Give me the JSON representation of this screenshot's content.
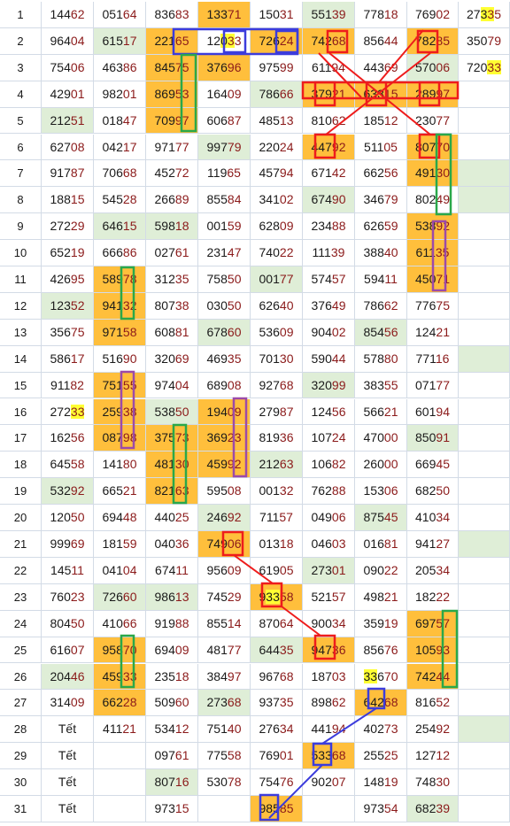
{
  "rows": [
    {
      "num": "1",
      "cells": [
        {
          "t": "14462"
        },
        {
          "t": "05164"
        },
        {
          "t": "83683"
        },
        {
          "t": "13371",
          "bg": "or"
        },
        {
          "t": "15031"
        },
        {
          "t": "55139",
          "bg": "gr"
        },
        {
          "t": "77818"
        },
        {
          "t": "76902"
        },
        {
          "t": "27335",
          "hl": [
            2,
            4
          ]
        }
      ]
    },
    {
      "num": "2",
      "cells": [
        {
          "t": "96404"
        },
        {
          "t": "61517",
          "bg": "gr"
        },
        {
          "t": "22165",
          "bg": "or"
        },
        {
          "t": "12033",
          "hl": [
            2,
            4
          ]
        },
        {
          "t": "72624",
          "bg": "or"
        },
        {
          "t": "74268",
          "bg": "or"
        },
        {
          "t": "85644"
        },
        {
          "t": "78285",
          "bg": "or"
        },
        {
          "t": "35079"
        }
      ]
    },
    {
      "num": "3",
      "cells": [
        {
          "t": "75406"
        },
        {
          "t": "46386"
        },
        {
          "t": "84575",
          "bg": "or"
        },
        {
          "t": "37696",
          "bg": "or"
        },
        {
          "t": "97599"
        },
        {
          "t": "61194"
        },
        {
          "t": "44369"
        },
        {
          "t": "57006",
          "bg": "gr"
        },
        {
          "t": "72033",
          "hl": [
            3,
            5
          ]
        }
      ]
    },
    {
      "num": "4",
      "cells": [
        {
          "t": "42901"
        },
        {
          "t": "98201"
        },
        {
          "t": "86953",
          "bg": "or"
        },
        {
          "t": "16409"
        },
        {
          "t": "78666",
          "bg": "gr"
        },
        {
          "t": "37921",
          "bg": "or"
        },
        {
          "t": "63315",
          "bg": "or"
        },
        {
          "t": "28997",
          "bg": "or"
        },
        {
          "t": ""
        }
      ]
    },
    {
      "num": "5",
      "cells": [
        {
          "t": "21251",
          "bg": "gr"
        },
        {
          "t": "01847"
        },
        {
          "t": "70997",
          "bg": "or"
        },
        {
          "t": "60687"
        },
        {
          "t": "48513"
        },
        {
          "t": "81062"
        },
        {
          "t": "18512"
        },
        {
          "t": "23077"
        },
        {
          "t": ""
        }
      ]
    },
    {
      "num": "6",
      "cells": [
        {
          "t": "62708"
        },
        {
          "t": "04217"
        },
        {
          "t": "97177"
        },
        {
          "t": "99779",
          "bg": "gr"
        },
        {
          "t": "22024"
        },
        {
          "t": "44792",
          "bg": "or"
        },
        {
          "t": "51105"
        },
        {
          "t": "80770",
          "bg": "or"
        },
        {
          "t": ""
        }
      ]
    },
    {
      "num": "7",
      "cells": [
        {
          "t": "91787"
        },
        {
          "t": "70668"
        },
        {
          "t": "45272"
        },
        {
          "t": "11965"
        },
        {
          "t": "45794"
        },
        {
          "t": "67142"
        },
        {
          "t": "66256"
        },
        {
          "t": "49130",
          "bg": "or"
        },
        {
          "t": "",
          "bg": "gr"
        }
      ]
    },
    {
      "num": "8",
      "cells": [
        {
          "t": "18815"
        },
        {
          "t": "54528"
        },
        {
          "t": "26689"
        },
        {
          "t": "85584"
        },
        {
          "t": "34102"
        },
        {
          "t": "67490",
          "bg": "gr"
        },
        {
          "t": "34679"
        },
        {
          "t": "80249"
        },
        {
          "t": "",
          "bg": "gr"
        }
      ]
    },
    {
      "num": "9",
      "cells": [
        {
          "t": "27229"
        },
        {
          "t": "64615",
          "bg": "gr"
        },
        {
          "t": "59818",
          "bg": "gr"
        },
        {
          "t": "00159"
        },
        {
          "t": "62809"
        },
        {
          "t": "23488"
        },
        {
          "t": "62659"
        },
        {
          "t": "53892",
          "bg": "or"
        },
        {
          "t": ""
        }
      ]
    },
    {
      "num": "10",
      "cells": [
        {
          "t": "65219"
        },
        {
          "t": "66686"
        },
        {
          "t": "02761"
        },
        {
          "t": "23147"
        },
        {
          "t": "74022"
        },
        {
          "t": "11139"
        },
        {
          "t": "38840"
        },
        {
          "t": "61135",
          "bg": "or"
        },
        {
          "t": ""
        }
      ]
    },
    {
      "num": "11",
      "cells": [
        {
          "t": "42695"
        },
        {
          "t": "58978",
          "bg": "or"
        },
        {
          "t": "31235"
        },
        {
          "t": "75850"
        },
        {
          "t": "00177",
          "bg": "gr"
        },
        {
          "t": "57457"
        },
        {
          "t": "59411"
        },
        {
          "t": "45071",
          "bg": "or"
        },
        {
          "t": ""
        }
      ]
    },
    {
      "num": "12",
      "cells": [
        {
          "t": "12352",
          "bg": "gr"
        },
        {
          "t": "94132",
          "bg": "or"
        },
        {
          "t": "80738"
        },
        {
          "t": "03050"
        },
        {
          "t": "62640"
        },
        {
          "t": "37649"
        },
        {
          "t": "78662"
        },
        {
          "t": "77675"
        },
        {
          "t": ""
        }
      ]
    },
    {
      "num": "13",
      "cells": [
        {
          "t": "35675"
        },
        {
          "t": "97158",
          "bg": "or"
        },
        {
          "t": "60881"
        },
        {
          "t": "67860",
          "bg": "gr"
        },
        {
          "t": "53609"
        },
        {
          "t": "90402"
        },
        {
          "t": "85456",
          "bg": "gr"
        },
        {
          "t": "12421"
        },
        {
          "t": ""
        }
      ]
    },
    {
      "num": "14",
      "cells": [
        {
          "t": "58617"
        },
        {
          "t": "51690"
        },
        {
          "t": "32069"
        },
        {
          "t": "46935"
        },
        {
          "t": "70130"
        },
        {
          "t": "59044"
        },
        {
          "t": "57880"
        },
        {
          "t": "77116"
        },
        {
          "t": "",
          "bg": "gr"
        }
      ]
    },
    {
      "num": "15",
      "cells": [
        {
          "t": "91182"
        },
        {
          "t": "75155",
          "bg": "or"
        },
        {
          "t": "97404"
        },
        {
          "t": "68908"
        },
        {
          "t": "92768"
        },
        {
          "t": "32099",
          "bg": "gr"
        },
        {
          "t": "38355"
        },
        {
          "t": "07177"
        },
        {
          "t": ""
        }
      ]
    },
    {
      "num": "16",
      "cells": [
        {
          "t": "27233",
          "hl": [
            3,
            5
          ]
        },
        {
          "t": "25938",
          "bg": "or"
        },
        {
          "t": "53850",
          "bg": "gr"
        },
        {
          "t": "19409",
          "bg": "or"
        },
        {
          "t": "27987"
        },
        {
          "t": "12456"
        },
        {
          "t": "56621"
        },
        {
          "t": "60194"
        },
        {
          "t": ""
        }
      ]
    },
    {
      "num": "17",
      "cells": [
        {
          "t": "16256"
        },
        {
          "t": "08798",
          "bg": "or"
        },
        {
          "t": "37573",
          "bg": "or"
        },
        {
          "t": "36923",
          "bg": "or"
        },
        {
          "t": "81936"
        },
        {
          "t": "10724"
        },
        {
          "t": "47000"
        },
        {
          "t": "85091",
          "bg": "gr"
        },
        {
          "t": ""
        }
      ]
    },
    {
      "num": "18",
      "cells": [
        {
          "t": "64558"
        },
        {
          "t": "14180"
        },
        {
          "t": "48130",
          "bg": "or"
        },
        {
          "t": "45992",
          "bg": "or"
        },
        {
          "t": "21263",
          "bg": "gr"
        },
        {
          "t": "10682"
        },
        {
          "t": "26000"
        },
        {
          "t": "66945"
        },
        {
          "t": ""
        }
      ]
    },
    {
      "num": "19",
      "cells": [
        {
          "t": "53292",
          "bg": "gr"
        },
        {
          "t": "66521"
        },
        {
          "t": "82163",
          "bg": "or"
        },
        {
          "t": "59508"
        },
        {
          "t": "00132"
        },
        {
          "t": "76288"
        },
        {
          "t": "15306"
        },
        {
          "t": "68250"
        },
        {
          "t": ""
        }
      ]
    },
    {
      "num": "20",
      "cells": [
        {
          "t": "12050"
        },
        {
          "t": "69448"
        },
        {
          "t": "44025"
        },
        {
          "t": "24692",
          "bg": "gr"
        },
        {
          "t": "71157"
        },
        {
          "t": "04906"
        },
        {
          "t": "87545",
          "bg": "gr"
        },
        {
          "t": "41034"
        },
        {
          "t": ""
        }
      ]
    },
    {
      "num": "21",
      "cells": [
        {
          "t": "99969"
        },
        {
          "t": "18159"
        },
        {
          "t": "04036"
        },
        {
          "t": "74906",
          "bg": "or"
        },
        {
          "t": "01318"
        },
        {
          "t": "04603"
        },
        {
          "t": "01681"
        },
        {
          "t": "94127"
        },
        {
          "t": "",
          "bg": "gr"
        }
      ]
    },
    {
      "num": "22",
      "cells": [
        {
          "t": "14511"
        },
        {
          "t": "04104"
        },
        {
          "t": "67411"
        },
        {
          "t": "95609"
        },
        {
          "t": "61905"
        },
        {
          "t": "27301",
          "bg": "gr"
        },
        {
          "t": "09022"
        },
        {
          "t": "20534"
        },
        {
          "t": ""
        }
      ]
    },
    {
      "num": "23",
      "cells": [
        {
          "t": "76023"
        },
        {
          "t": "72660",
          "bg": "gr"
        },
        {
          "t": "98613",
          "bg": "gr"
        },
        {
          "t": "74529"
        },
        {
          "t": "93358",
          "bg": "or",
          "hl": [
            1,
            3
          ]
        },
        {
          "t": "52157"
        },
        {
          "t": "49821"
        },
        {
          "t": "18222"
        },
        {
          "t": ""
        }
      ]
    },
    {
      "num": "24",
      "cells": [
        {
          "t": "80450"
        },
        {
          "t": "41066"
        },
        {
          "t": "91988"
        },
        {
          "t": "85514"
        },
        {
          "t": "87064"
        },
        {
          "t": "90034"
        },
        {
          "t": "35919"
        },
        {
          "t": "69757",
          "bg": "or"
        },
        {
          "t": ""
        }
      ]
    },
    {
      "num": "25",
      "cells": [
        {
          "t": "61607"
        },
        {
          "t": "95870",
          "bg": "or"
        },
        {
          "t": "69409"
        },
        {
          "t": "48177"
        },
        {
          "t": "64435",
          "bg": "gr"
        },
        {
          "t": "94736",
          "bg": "or"
        },
        {
          "t": "85676"
        },
        {
          "t": "10593",
          "bg": "or"
        },
        {
          "t": ""
        }
      ]
    },
    {
      "num": "26",
      "cells": [
        {
          "t": "20446",
          "bg": "gr"
        },
        {
          "t": "45933",
          "bg": "or"
        },
        {
          "t": "23518"
        },
        {
          "t": "38497"
        },
        {
          "t": "96768"
        },
        {
          "t": "18703"
        },
        {
          "t": "33670",
          "hl": [
            0,
            2
          ]
        },
        {
          "t": "74244",
          "bg": "or"
        },
        {
          "t": ""
        }
      ]
    },
    {
      "num": "27",
      "cells": [
        {
          "t": "31409"
        },
        {
          "t": "66228",
          "bg": "or"
        },
        {
          "t": "50960"
        },
        {
          "t": "27368",
          "bg": "gr"
        },
        {
          "t": "93735"
        },
        {
          "t": "89862"
        },
        {
          "t": "64268",
          "bg": "or"
        },
        {
          "t": "81652"
        },
        {
          "t": ""
        }
      ]
    },
    {
      "num": "28",
      "cells": [
        {
          "t": "Tết",
          "tet": true
        },
        {
          "t": "41121"
        },
        {
          "t": "53412"
        },
        {
          "t": "75140"
        },
        {
          "t": "27634"
        },
        {
          "t": "44194"
        },
        {
          "t": "40273"
        },
        {
          "t": "25492"
        },
        {
          "t": "",
          "bg": "gr"
        }
      ]
    },
    {
      "num": "29",
      "cells": [
        {
          "t": "Tết",
          "tet": true
        },
        {
          "t": ""
        },
        {
          "t": "09761"
        },
        {
          "t": "77558"
        },
        {
          "t": "76901"
        },
        {
          "t": "53368",
          "bg": "or"
        },
        {
          "t": "25525"
        },
        {
          "t": "12712"
        },
        {
          "t": ""
        }
      ]
    },
    {
      "num": "30",
      "cells": [
        {
          "t": "Tết",
          "tet": true
        },
        {
          "t": ""
        },
        {
          "t": "80716",
          "bg": "gr"
        },
        {
          "t": "53078"
        },
        {
          "t": "75476"
        },
        {
          "t": "90207"
        },
        {
          "t": "14819"
        },
        {
          "t": "74830"
        },
        {
          "t": ""
        }
      ]
    },
    {
      "num": "31",
      "cells": [
        {
          "t": "Tết",
          "tet": true
        },
        {
          "t": ""
        },
        {
          "t": "97315"
        },
        {
          "t": ""
        },
        {
          "t": "98585",
          "bg": "or"
        },
        {
          "t": ""
        },
        {
          "t": "97354"
        },
        {
          "t": "68239",
          "bg": "gr"
        },
        {
          "t": ""
        }
      ]
    }
  ],
  "colors": {
    "orange": "#ffbf3c",
    "green_light": "#dfeed7",
    "yellow": "#ffff33",
    "red_mark": "#ee1c1c",
    "blue_mark": "#3c3cdc",
    "green_mark": "#2aa84a",
    "purple_mark": "#9c4aa8"
  }
}
